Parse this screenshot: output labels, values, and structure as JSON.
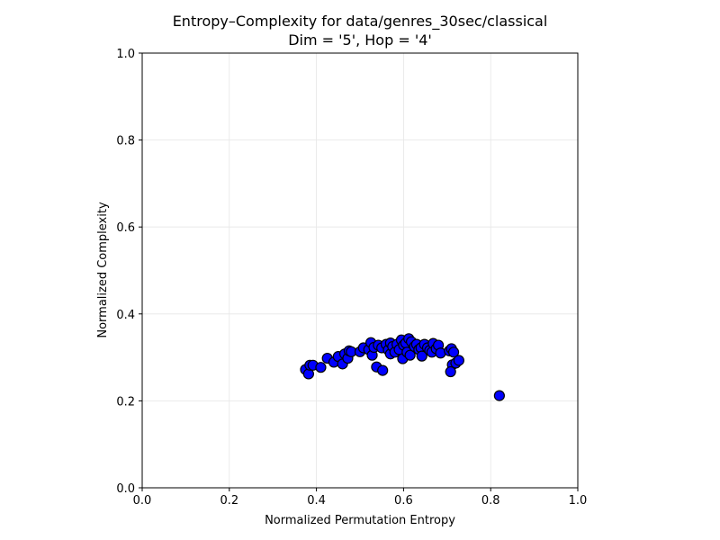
{
  "chart_data": {
    "type": "scatter",
    "title": "Entropy–Complexity for data/genres_30sec/classical",
    "subtitle": "Dim = '5', Hop = '4'",
    "xlabel": "Normalized Permutation Entropy",
    "ylabel": "Normalized Complexity",
    "xlim": [
      0.0,
      1.0
    ],
    "ylim": [
      0.0,
      1.0
    ],
    "xticks": [
      "0.0",
      "0.2",
      "0.4",
      "0.6",
      "0.8",
      "1.0"
    ],
    "yticks": [
      "0.0",
      "0.2",
      "0.4",
      "0.6",
      "0.8",
      "1.0"
    ],
    "grid": true,
    "legend": "none",
    "marker_color": "#0000ff",
    "marker_edge_color": "#000000",
    "points": [
      {
        "x": 0.375,
        "y": 0.272
      },
      {
        "x": 0.382,
        "y": 0.262
      },
      {
        "x": 0.385,
        "y": 0.282
      },
      {
        "x": 0.392,
        "y": 0.282
      },
      {
        "x": 0.41,
        "y": 0.277
      },
      {
        "x": 0.425,
        "y": 0.298
      },
      {
        "x": 0.44,
        "y": 0.289
      },
      {
        "x": 0.45,
        "y": 0.302
      },
      {
        "x": 0.46,
        "y": 0.285
      },
      {
        "x": 0.465,
        "y": 0.308
      },
      {
        "x": 0.472,
        "y": 0.298
      },
      {
        "x": 0.475,
        "y": 0.315
      },
      {
        "x": 0.48,
        "y": 0.313
      },
      {
        "x": 0.5,
        "y": 0.313
      },
      {
        "x": 0.508,
        "y": 0.322
      },
      {
        "x": 0.52,
        "y": 0.318
      },
      {
        "x": 0.525,
        "y": 0.334
      },
      {
        "x": 0.528,
        "y": 0.305
      },
      {
        "x": 0.532,
        "y": 0.323
      },
      {
        "x": 0.538,
        "y": 0.278
      },
      {
        "x": 0.542,
        "y": 0.328
      },
      {
        "x": 0.55,
        "y": 0.322
      },
      {
        "x": 0.552,
        "y": 0.27
      },
      {
        "x": 0.56,
        "y": 0.33
      },
      {
        "x": 0.565,
        "y": 0.317
      },
      {
        "x": 0.57,
        "y": 0.333
      },
      {
        "x": 0.57,
        "y": 0.308
      },
      {
        "x": 0.575,
        "y": 0.325
      },
      {
        "x": 0.58,
        "y": 0.312
      },
      {
        "x": 0.585,
        "y": 0.33
      },
      {
        "x": 0.59,
        "y": 0.318
      },
      {
        "x": 0.595,
        "y": 0.34
      },
      {
        "x": 0.598,
        "y": 0.297
      },
      {
        "x": 0.6,
        "y": 0.328
      },
      {
        "x": 0.605,
        "y": 0.333
      },
      {
        "x": 0.608,
        "y": 0.312
      },
      {
        "x": 0.612,
        "y": 0.343
      },
      {
        "x": 0.615,
        "y": 0.305
      },
      {
        "x": 0.618,
        "y": 0.336
      },
      {
        "x": 0.625,
        "y": 0.325
      },
      {
        "x": 0.63,
        "y": 0.33
      },
      {
        "x": 0.635,
        "y": 0.318
      },
      {
        "x": 0.64,
        "y": 0.322
      },
      {
        "x": 0.642,
        "y": 0.303
      },
      {
        "x": 0.648,
        "y": 0.33
      },
      {
        "x": 0.655,
        "y": 0.322
      },
      {
        "x": 0.66,
        "y": 0.316
      },
      {
        "x": 0.665,
        "y": 0.312
      },
      {
        "x": 0.668,
        "y": 0.332
      },
      {
        "x": 0.675,
        "y": 0.32
      },
      {
        "x": 0.68,
        "y": 0.328
      },
      {
        "x": 0.685,
        "y": 0.31
      },
      {
        "x": 0.705,
        "y": 0.315
      },
      {
        "x": 0.71,
        "y": 0.32
      },
      {
        "x": 0.712,
        "y": 0.283
      },
      {
        "x": 0.708,
        "y": 0.267
      },
      {
        "x": 0.715,
        "y": 0.312
      },
      {
        "x": 0.72,
        "y": 0.287
      },
      {
        "x": 0.727,
        "y": 0.293
      },
      {
        "x": 0.82,
        "y": 0.212
      }
    ]
  }
}
